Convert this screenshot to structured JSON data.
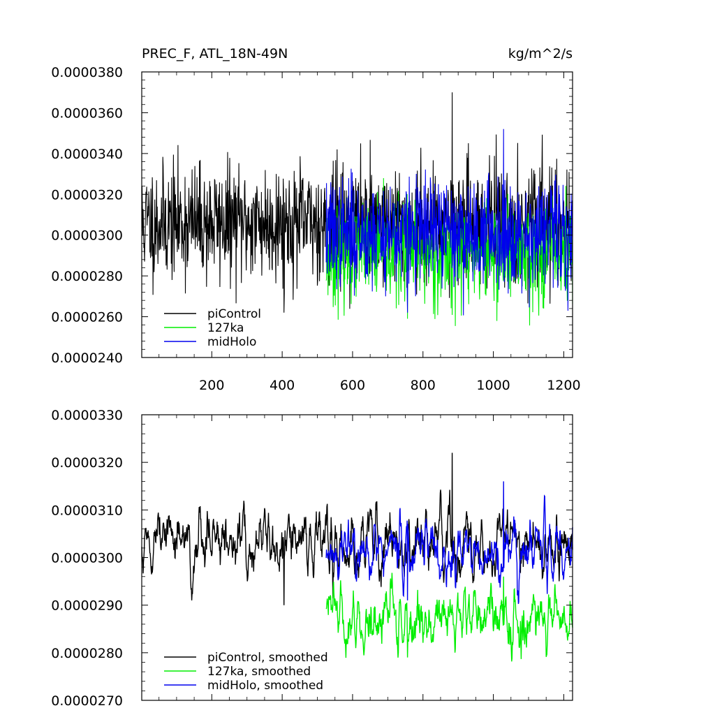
{
  "chart_data": [
    {
      "type": "line",
      "title": "PREC_F, ATL_18N-49N",
      "units": "kg/m^2/s",
      "xlim": [
        1,
        1225
      ],
      "ylim": [
        2.4e-05,
        3.8e-05
      ],
      "xticks": [
        200,
        400,
        600,
        800,
        1000,
        1200
      ],
      "xtick_labels": [
        "200",
        "400",
        "600",
        "800",
        "1000",
        "1200"
      ],
      "yticks": [
        2.4e-05,
        2.6e-05,
        2.8e-05,
        3e-05,
        3.2e-05,
        3.4e-05,
        3.6e-05,
        3.8e-05
      ],
      "ytick_labels": [
        "0.0000240",
        "0.0000260",
        "0.0000280",
        "0.0000300",
        "0.0000320",
        "0.0000340",
        "0.0000360",
        "0.0000380"
      ],
      "legend_position": "bottom-left",
      "series": [
        {
          "name": "piControl",
          "color": "#000000",
          "x_start": 1,
          "x_end": 1225,
          "mean": 3.06e-05,
          "amplitude": 1.4e-06,
          "spikes_max": 3.7e-05,
          "spikes_min": 2.62e-05,
          "seed": 11
        },
        {
          "name": "127ka",
          "color": "#00ee00",
          "x_start": 525,
          "x_end": 1225,
          "mean": 2.91e-05,
          "amplitude": 1.2e-06,
          "spikes_max": 3.32e-05,
          "spikes_min": 2.59e-05,
          "seed": 23
        },
        {
          "name": "midHolo",
          "color": "#0000ee",
          "x_start": 525,
          "x_end": 1225,
          "mean": 3.01e-05,
          "amplitude": 1.3e-06,
          "spikes_max": 3.52e-05,
          "spikes_min": 2.62e-05,
          "seed": 37
        }
      ]
    },
    {
      "type": "line",
      "title": "",
      "xlim": [
        1,
        1225
      ],
      "ylim": [
        2.7e-05,
        3.3e-05
      ],
      "xticks": [
        200,
        400,
        600,
        800,
        1000,
        1200
      ],
      "xtick_labels": [],
      "yticks": [
        2.7e-05,
        2.8e-05,
        2.9e-05,
        3e-05,
        3.1e-05,
        3.2e-05,
        3.3e-05
      ],
      "ytick_labels": [
        "0.0000270",
        "0.0000280",
        "0.0000290",
        "0.0000300",
        "0.0000310",
        "0.0000320",
        "0.0000330"
      ],
      "legend_position": "bottom-left",
      "series": [
        {
          "name": "piControl, smoothed",
          "color": "#000000",
          "x_start": 1,
          "x_end": 1225,
          "mean": 3.03e-05,
          "amplitude": 4.5e-07,
          "spikes_max": 3.22e-05,
          "spikes_min": 2.9e-05,
          "seed": 51
        },
        {
          "name": "127ka, smoothed",
          "color": "#00ee00",
          "x_start": 525,
          "x_end": 1225,
          "mean": 2.87e-05,
          "amplitude": 4e-07,
          "spikes_max": 2.96e-05,
          "spikes_min": 2.79e-05,
          "seed": 63
        },
        {
          "name": "midHolo, smoothed",
          "color": "#0000ee",
          "x_start": 525,
          "x_end": 1225,
          "mean": 3.01e-05,
          "amplitude": 4e-07,
          "spikes_max": 3.16e-05,
          "spikes_min": 2.91e-05,
          "seed": 77
        }
      ]
    }
  ]
}
